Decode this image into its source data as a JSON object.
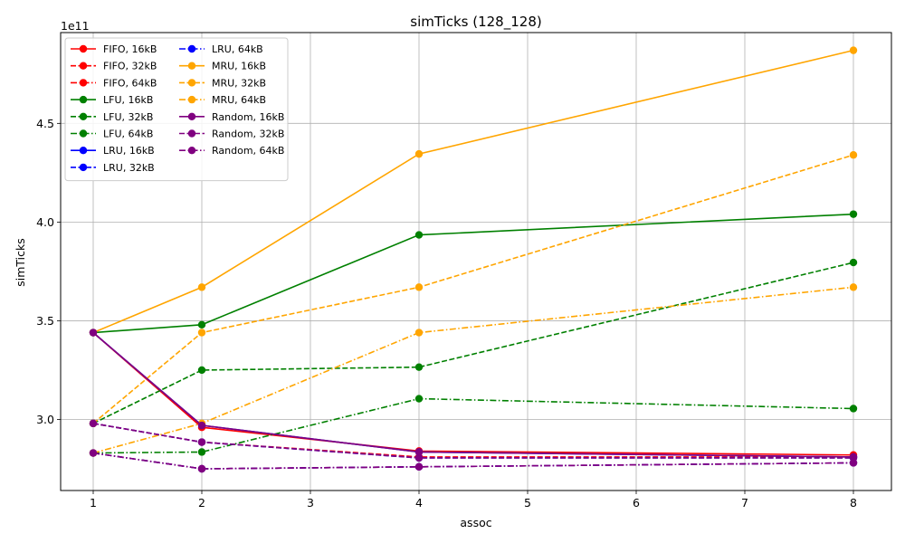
{
  "chart_data": {
    "type": "line",
    "title": "simTicks (128_128)",
    "xlabel": "assoc",
    "ylabel": "simTicks",
    "offset_label": "1e11",
    "xlim": [
      0.7,
      8.35
    ],
    "ylim": [
      2.64,
      4.96
    ],
    "xticks": [
      1,
      2,
      3,
      4,
      5,
      6,
      7,
      8
    ],
    "yticks": [
      3.0,
      3.5,
      4.0,
      4.5
    ],
    "ytick_labels": [
      "3.0",
      "3.5",
      "4.0",
      "4.5"
    ],
    "grid": true,
    "legend_position": "top-left",
    "x": [
      1,
      2,
      4,
      8
    ],
    "series": [
      {
        "name": "FIFO, 16kB",
        "color": "#ff0000",
        "style": "solid",
        "values": [
          3.44,
          2.96,
          2.84,
          2.82
        ]
      },
      {
        "name": "FIFO, 32kB",
        "color": "#ff0000",
        "style": "dashed",
        "values": [
          2.98,
          2.885,
          2.81,
          2.81
        ]
      },
      {
        "name": "FIFO, 64kB",
        "color": "#ff0000",
        "style": "dashdot",
        "values": [
          2.83,
          2.75,
          2.76,
          2.78
        ]
      },
      {
        "name": "LFU, 16kB",
        "color": "#008000",
        "style": "solid",
        "values": [
          3.44,
          3.48,
          3.935,
          4.04
        ]
      },
      {
        "name": "LFU, 32kB",
        "color": "#008000",
        "style": "dashed",
        "values": [
          2.98,
          3.25,
          3.265,
          3.795
        ]
      },
      {
        "name": "LFU, 64kB",
        "color": "#008000",
        "style": "dashdot",
        "values": [
          2.83,
          2.835,
          3.105,
          3.055
        ]
      },
      {
        "name": "LRU, 16kB",
        "color": "#0000ff",
        "style": "solid",
        "values": [
          3.44,
          2.97,
          2.835,
          2.81
        ]
      },
      {
        "name": "LRU, 32kB",
        "color": "#0000ff",
        "style": "dashed",
        "values": [
          2.98,
          2.885,
          2.805,
          2.805
        ]
      },
      {
        "name": "LRU, 64kB",
        "color": "#0000ff",
        "style": "dashdot",
        "values": [
          2.83,
          2.75,
          2.76,
          2.78
        ]
      },
      {
        "name": "MRU, 16kB",
        "color": "#ffa500",
        "style": "solid",
        "values": [
          3.44,
          3.67,
          4.345,
          4.87
        ]
      },
      {
        "name": "MRU, 32kB",
        "color": "#ffa500",
        "style": "dashed",
        "values": [
          2.98,
          3.44,
          3.67,
          4.34
        ]
      },
      {
        "name": "MRU, 64kB",
        "color": "#ffa500",
        "style": "dashdot",
        "values": [
          2.83,
          2.98,
          3.44,
          3.67
        ]
      },
      {
        "name": "Random, 16kB",
        "color": "#800080",
        "style": "solid",
        "values": [
          3.44,
          2.97,
          2.835,
          2.81
        ]
      },
      {
        "name": "Random, 32kB",
        "color": "#800080",
        "style": "dashed",
        "values": [
          2.98,
          2.885,
          2.805,
          2.805
        ]
      },
      {
        "name": "Random, 64kB",
        "color": "#800080",
        "style": "dashdot",
        "values": [
          2.83,
          2.75,
          2.76,
          2.78
        ]
      }
    ]
  }
}
